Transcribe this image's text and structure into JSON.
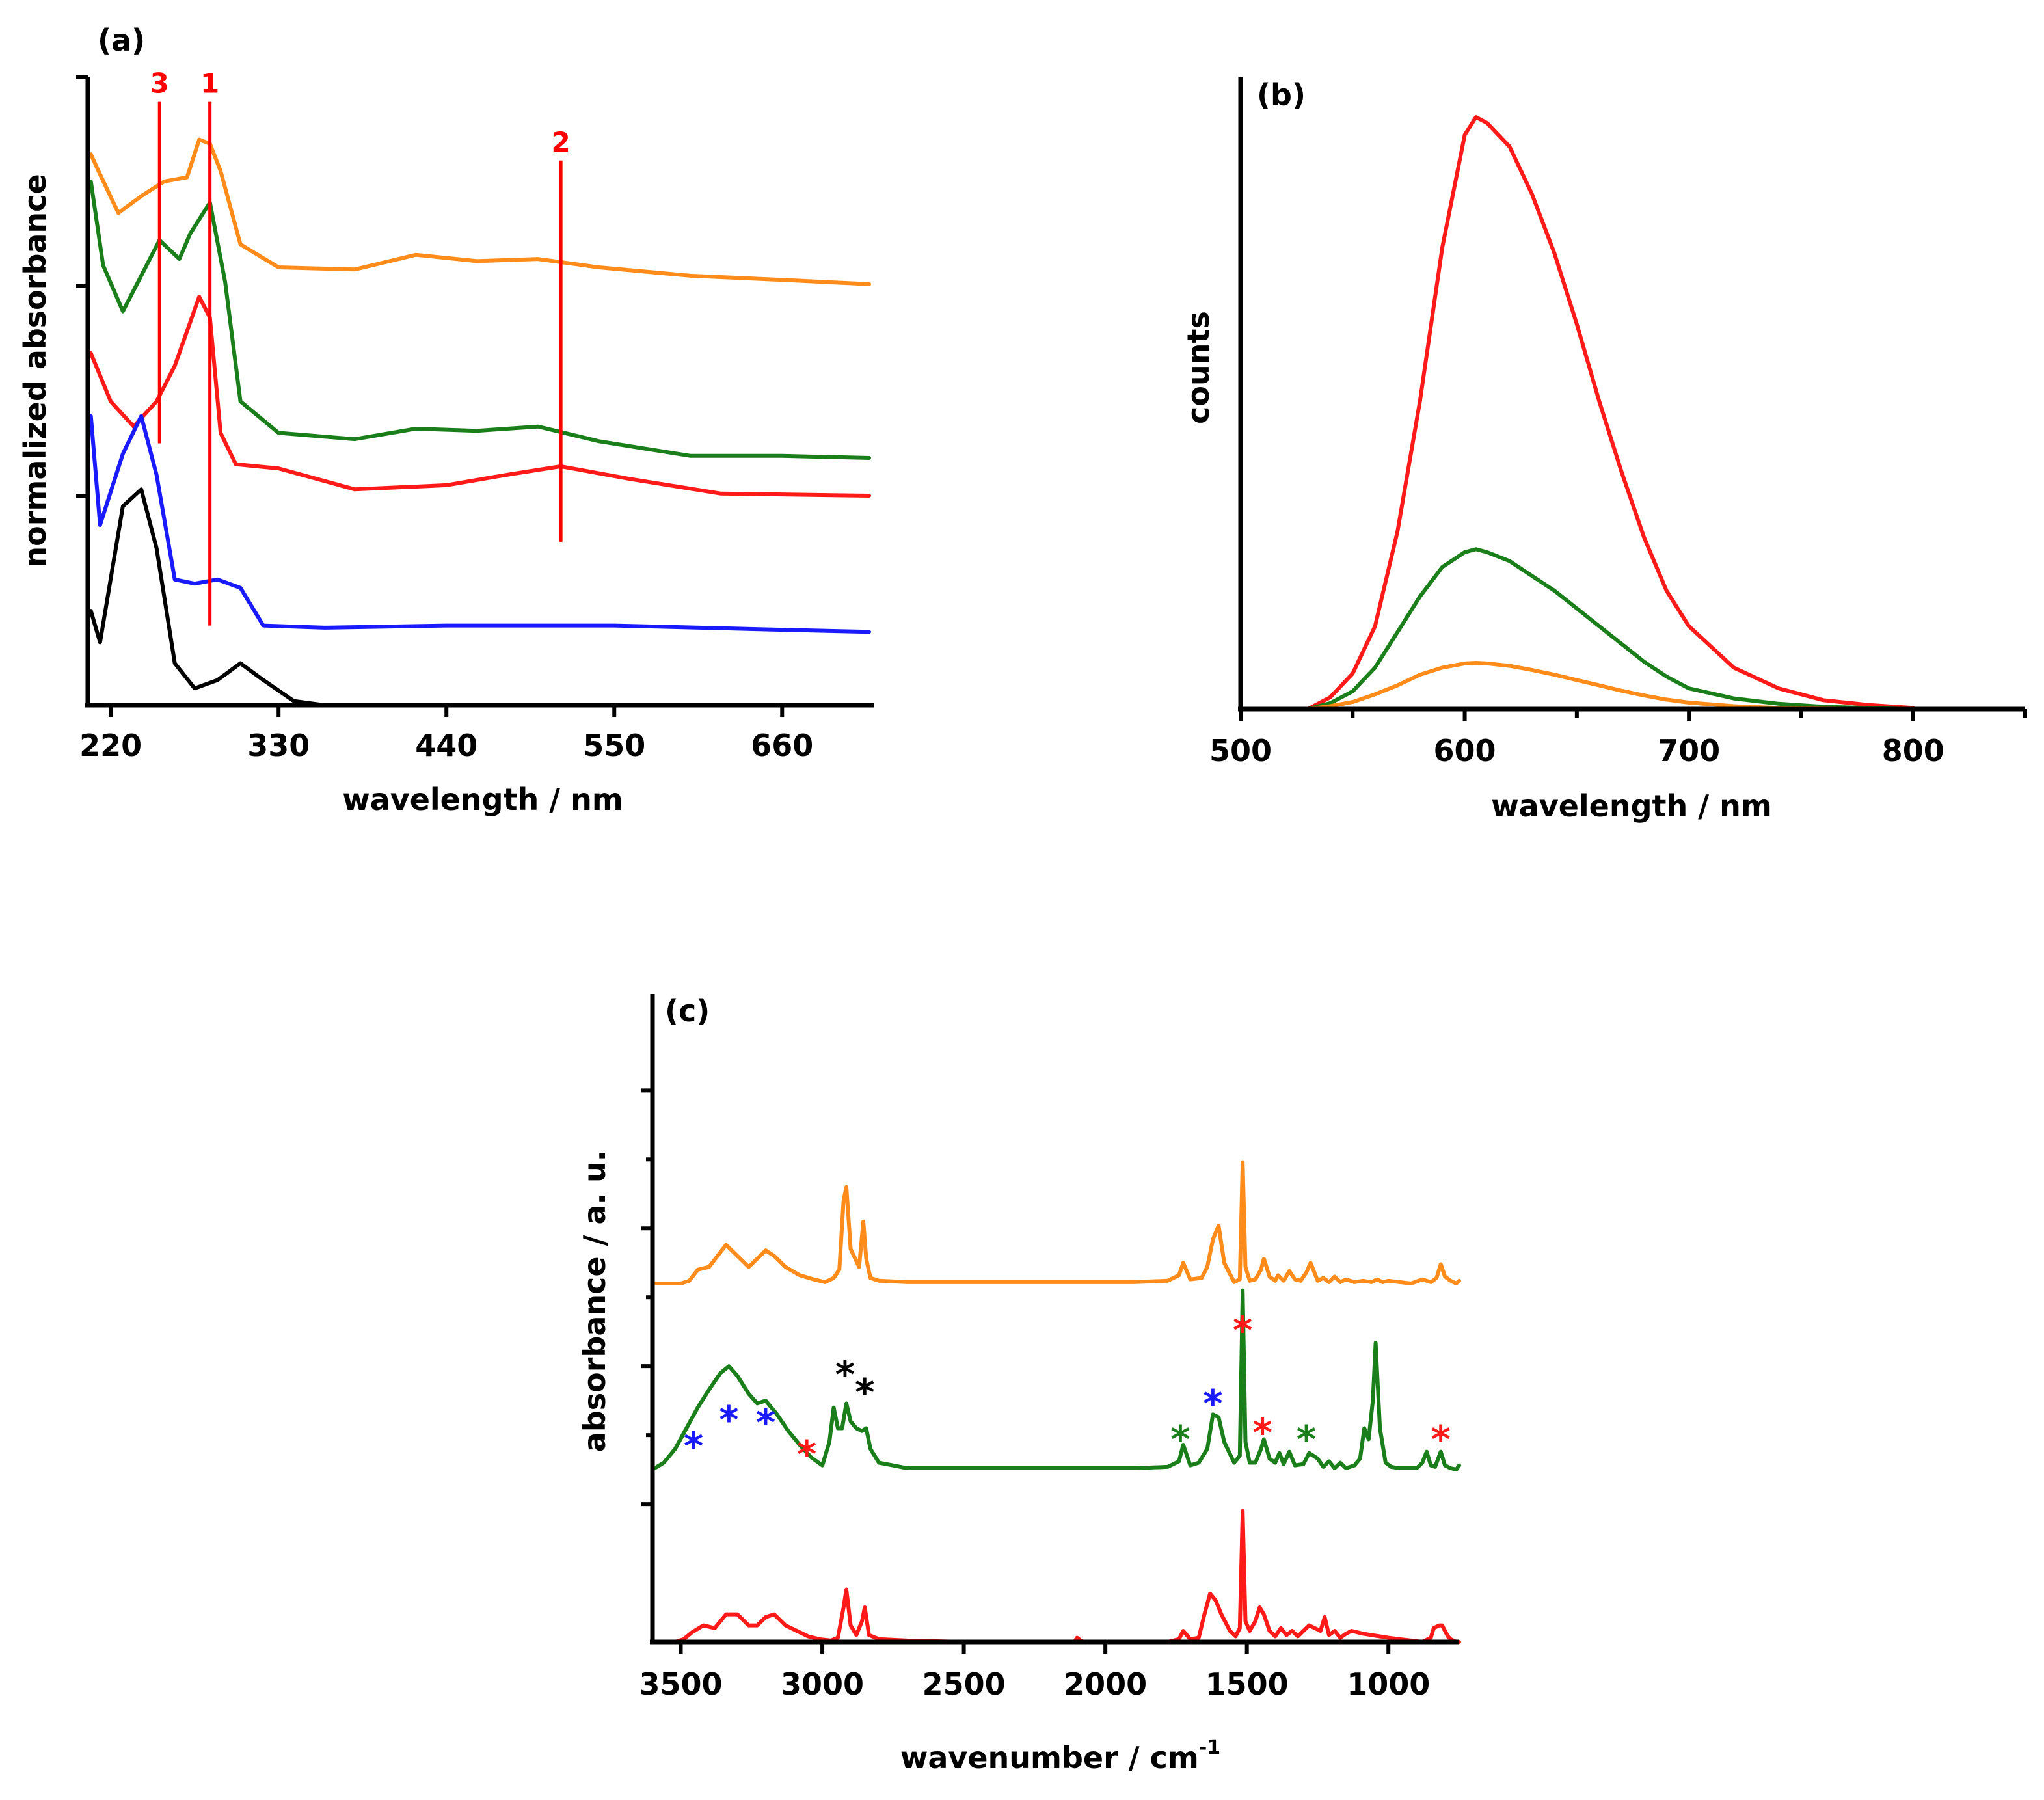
{
  "colors": {
    "orange": "#ff8c1a",
    "green": "#1a7f1a",
    "red": "#ff1a1a",
    "blue": "#1a1aff",
    "black": "#000000"
  },
  "chart_data": [
    {
      "type": "line",
      "panel": "(a)",
      "xlabel": "wavelength / nm",
      "ylabel": "normalized absorbance",
      "xlim": [
        205,
        720
      ],
      "ylim": [
        0,
        3
      ],
      "xticks": [
        "220",
        "330",
        "440",
        "550",
        "660"
      ],
      "markers": [
        {
          "label": "3",
          "x": 252,
          "y_top": 2.88,
          "y_bottom": 1.25
        },
        {
          "label": "1",
          "x": 285,
          "y_top": 2.88,
          "y_bottom": 0.38
        },
        {
          "label": "2",
          "x": 515,
          "y_top": 2.6,
          "y_bottom": 0.78
        }
      ],
      "series": [
        {
          "name": "orange",
          "color": "orange",
          "x": [
            207,
            212,
            225,
            240,
            255,
            270,
            278,
            285,
            292,
            305,
            330,
            380,
            420,
            460,
            500,
            540,
            600,
            660,
            717
          ],
          "y": [
            2.63,
            2.55,
            2.35,
            2.43,
            2.5,
            2.52,
            2.7,
            2.68,
            2.55,
            2.2,
            2.09,
            2.08,
            2.15,
            2.12,
            2.13,
            2.09,
            2.05,
            2.03,
            2.01
          ]
        },
        {
          "name": "green",
          "color": "green",
          "x": [
            207,
            215,
            228,
            240,
            252,
            265,
            272,
            285,
            295,
            305,
            330,
            380,
            420,
            460,
            500,
            540,
            600,
            660,
            717
          ],
          "y": [
            2.5,
            2.1,
            1.88,
            2.05,
            2.22,
            2.13,
            2.25,
            2.4,
            2.02,
            1.45,
            1.3,
            1.27,
            1.32,
            1.31,
            1.33,
            1.26,
            1.19,
            1.19,
            1.18
          ]
        },
        {
          "name": "red",
          "color": "red",
          "x": [
            207,
            220,
            235,
            250,
            262,
            278,
            285,
            292,
            302,
            330,
            380,
            440,
            480,
            515,
            560,
            620,
            717
          ],
          "y": [
            1.68,
            1.45,
            1.33,
            1.45,
            1.62,
            1.95,
            1.85,
            1.3,
            1.15,
            1.13,
            1.03,
            1.05,
            1.1,
            1.14,
            1.08,
            1.01,
            1.0
          ]
        },
        {
          "name": "blue",
          "color": "blue",
          "x": [
            207,
            213,
            228,
            240,
            250,
            262,
            275,
            290,
            305,
            320,
            360,
            440,
            550,
            660,
            717
          ],
          "y": [
            1.38,
            0.86,
            1.2,
            1.38,
            1.1,
            0.6,
            0.58,
            0.6,
            0.56,
            0.38,
            0.37,
            0.38,
            0.38,
            0.36,
            0.35
          ]
        },
        {
          "name": "black",
          "color": "black",
          "x": [
            207,
            213,
            228,
            240,
            250,
            262,
            275,
            290,
            305,
            320,
            340,
            360,
            420,
            560,
            717
          ],
          "y": [
            0.45,
            0.3,
            0.95,
            1.03,
            0.75,
            0.2,
            0.08,
            0.12,
            0.2,
            0.12,
            0.02,
            0.0,
            0.0,
            0.0,
            0.0
          ]
        }
      ]
    },
    {
      "type": "line",
      "panel": "(b)",
      "xlabel": "wavelength / nm",
      "ylabel": "counts",
      "xlim": [
        500,
        850
      ],
      "ylim": [
        0,
        1
      ],
      "xticks": [
        "500",
        "600",
        "700",
        "800"
      ],
      "series": [
        {
          "name": "red",
          "color": "red",
          "x": [
            530,
            540,
            550,
            560,
            570,
            580,
            590,
            600,
            605,
            610,
            620,
            630,
            640,
            650,
            660,
            670,
            680,
            690,
            700,
            720,
            740,
            760,
            780,
            800
          ],
          "y": [
            0.0,
            0.02,
            0.06,
            0.14,
            0.3,
            0.52,
            0.78,
            0.97,
            1.0,
            0.99,
            0.95,
            0.87,
            0.77,
            0.65,
            0.52,
            0.4,
            0.29,
            0.2,
            0.14,
            0.07,
            0.035,
            0.015,
            0.007,
            0.002
          ]
        },
        {
          "name": "green",
          "color": "green",
          "x": [
            530,
            540,
            550,
            560,
            570,
            580,
            590,
            600,
            605,
            610,
            620,
            630,
            640,
            650,
            660,
            670,
            680,
            690,
            700,
            720,
            740,
            760,
            780,
            800
          ],
          "y": [
            0.0,
            0.01,
            0.03,
            0.07,
            0.13,
            0.19,
            0.24,
            0.265,
            0.27,
            0.265,
            0.25,
            0.225,
            0.2,
            0.17,
            0.14,
            0.11,
            0.08,
            0.055,
            0.035,
            0.018,
            0.009,
            0.004,
            0.002,
            0.0
          ]
        },
        {
          "name": "orange",
          "color": "orange",
          "x": [
            530,
            540,
            550,
            560,
            570,
            580,
            590,
            600,
            605,
            610,
            620,
            630,
            640,
            650,
            660,
            670,
            680,
            690,
            700,
            720,
            740,
            760,
            780,
            800
          ],
          "y": [
            0.0,
            0.005,
            0.012,
            0.025,
            0.04,
            0.058,
            0.07,
            0.077,
            0.078,
            0.077,
            0.073,
            0.066,
            0.058,
            0.049,
            0.04,
            0.031,
            0.023,
            0.016,
            0.011,
            0.005,
            0.002,
            0.001,
            0.0,
            0.0
          ]
        }
      ]
    },
    {
      "type": "line",
      "panel": "(c)",
      "xlabel": "wavenumber / cm",
      "xlabel_superscript": "-1",
      "ylabel": "absorbance / a. u.",
      "xlim": [
        3600,
        750
      ],
      "ylim": [
        0,
        4.7
      ],
      "xticks": [
        "3500",
        "3000",
        "2500",
        "2000",
        "1500",
        "1000"
      ],
      "annotations": [
        {
          "text": "*",
          "color": "blue",
          "x": 3455,
          "y": 1.43
        },
        {
          "text": "*",
          "color": "blue",
          "x": 3330,
          "y": 1.62
        },
        {
          "text": "*",
          "color": "blue",
          "x": 3200,
          "y": 1.6
        },
        {
          "text": "*",
          "color": "red",
          "x": 3055,
          "y": 1.37
        },
        {
          "text": "*",
          "color": "black",
          "x": 2920,
          "y": 1.95
        },
        {
          "text": "*",
          "color": "black",
          "x": 2850,
          "y": 1.82
        },
        {
          "text": "*",
          "color": "blue",
          "x": 1620,
          "y": 1.74
        },
        {
          "text": "*",
          "color": "red",
          "x": 1515,
          "y": 2.27
        },
        {
          "text": "*",
          "color": "green",
          "x": 1735,
          "y": 1.48
        },
        {
          "text": "*",
          "color": "red",
          "x": 1445,
          "y": 1.53
        },
        {
          "text": "*",
          "color": "green",
          "x": 1290,
          "y": 1.48
        },
        {
          "text": "*",
          "color": "red",
          "x": 815,
          "y": 1.48
        }
      ],
      "series": [
        {
          "name": "orange",
          "color": "orange",
          "offset": 2.6,
          "x": [
            3600,
            3500,
            3470,
            3440,
            3400,
            3370,
            3340,
            3300,
            3260,
            3230,
            3200,
            3170,
            3130,
            3080,
            3030,
            2990,
            2960,
            2940,
            2925,
            2915,
            2900,
            2870,
            2855,
            2845,
            2830,
            2800,
            2700,
            2500,
            2200,
            1900,
            1780,
            1740,
            1725,
            1700,
            1660,
            1640,
            1620,
            1600,
            1580,
            1545,
            1525,
            1515,
            1505,
            1490,
            1470,
            1450,
            1440,
            1420,
            1400,
            1390,
            1370,
            1350,
            1330,
            1310,
            1290,
            1275,
            1250,
            1230,
            1210,
            1190,
            1170,
            1150,
            1120,
            1090,
            1060,
            1040,
            1020,
            1000,
            960,
            920,
            880,
            850,
            830,
            815,
            800,
            780,
            760,
            750
          ],
          "y": [
            0,
            0,
            0.02,
            0.1,
            0.12,
            0.2,
            0.28,
            0.2,
            0.12,
            0.18,
            0.24,
            0.2,
            0.12,
            0.06,
            0.03,
            0.01,
            0.04,
            0.1,
            0.6,
            0.7,
            0.25,
            0.12,
            0.45,
            0.18,
            0.04,
            0.02,
            0.01,
            0.01,
            0.01,
            0.01,
            0.02,
            0.06,
            0.15,
            0.03,
            0.04,
            0.12,
            0.32,
            0.42,
            0.15,
            0.01,
            0.03,
            0.88,
            0.12,
            0.02,
            0.03,
            0.1,
            0.18,
            0.05,
            0.02,
            0.06,
            0.02,
            0.09,
            0.03,
            0.02,
            0.08,
            0.15,
            0.02,
            0.04,
            0.01,
            0.05,
            0.01,
            0.03,
            0.01,
            0.02,
            0.01,
            0.03,
            0.01,
            0.02,
            0.01,
            0.0,
            0.03,
            0.01,
            0.04,
            0.14,
            0.05,
            0.02,
            0.0,
            0.02
          ]
        },
        {
          "name": "green",
          "color": "green",
          "offset": 1.25,
          "x": [
            3600,
            3560,
            3520,
            3480,
            3440,
            3400,
            3360,
            3330,
            3300,
            3260,
            3230,
            3200,
            3160,
            3120,
            3080,
            3040,
            3000,
            2975,
            2960,
            2945,
            2930,
            2915,
            2900,
            2880,
            2860,
            2845,
            2830,
            2800,
            2750,
            2700,
            2500,
            2200,
            1900,
            1780,
            1740,
            1725,
            1700,
            1670,
            1640,
            1620,
            1600,
            1580,
            1545,
            1525,
            1515,
            1505,
            1490,
            1470,
            1450,
            1440,
            1420,
            1400,
            1385,
            1370,
            1350,
            1330,
            1300,
            1280,
            1250,
            1230,
            1210,
            1190,
            1170,
            1150,
            1120,
            1100,
            1085,
            1070,
            1055,
            1045,
            1030,
            1010,
            990,
            960,
            930,
            900,
            880,
            865,
            850,
            835,
            815,
            800,
            780,
            760,
            750
          ],
          "y": [
            0,
            0.05,
            0.15,
            0.3,
            0.45,
            0.58,
            0.7,
            0.75,
            0.68,
            0.55,
            0.48,
            0.5,
            0.4,
            0.28,
            0.18,
            0.09,
            0.03,
            0.2,
            0.45,
            0.3,
            0.3,
            0.48,
            0.35,
            0.3,
            0.28,
            0.3,
            0.15,
            0.05,
            0.03,
            0.01,
            0.01,
            0.01,
            0.01,
            0.02,
            0.06,
            0.18,
            0.03,
            0.05,
            0.15,
            0.4,
            0.38,
            0.2,
            0.05,
            0.1,
            1.3,
            0.2,
            0.05,
            0.05,
            0.15,
            0.22,
            0.08,
            0.05,
            0.12,
            0.04,
            0.13,
            0.03,
            0.04,
            0.12,
            0.08,
            0.02,
            0.06,
            0.01,
            0.05,
            0.01,
            0.03,
            0.08,
            0.3,
            0.22,
            0.5,
            0.92,
            0.3,
            0.05,
            0.02,
            0.01,
            0.01,
            0.01,
            0.05,
            0.13,
            0.03,
            0.02,
            0.13,
            0.03,
            0.01,
            0.0,
            0.03
          ]
        },
        {
          "name": "red",
          "color": "red",
          "offset": 0.0,
          "x": [
            3600,
            3520,
            3490,
            3460,
            3420,
            3380,
            3340,
            3300,
            3260,
            3230,
            3200,
            3170,
            3130,
            3090,
            3050,
            3010,
            2970,
            2945,
            2925,
            2915,
            2900,
            2880,
            2860,
            2850,
            2835,
            2800,
            2700,
            2500,
            2300,
            2110,
            2100,
            2080,
            2000,
            1900,
            1780,
            1740,
            1725,
            1700,
            1670,
            1650,
            1630,
            1610,
            1590,
            1560,
            1540,
            1525,
            1515,
            1505,
            1490,
            1470,
            1455,
            1440,
            1420,
            1400,
            1380,
            1360,
            1340,
            1320,
            1300,
            1280,
            1260,
            1240,
            1225,
            1210,
            1190,
            1170,
            1150,
            1130,
            1110,
            1090,
            1060,
            1030,
            1000,
            960,
            920,
            880,
            860,
            850,
            840,
            820,
            810,
            800,
            790,
            780,
            760,
            750
          ],
          "y": [
            0,
            0.0,
            0.02,
            0.07,
            0.12,
            0.1,
            0.2,
            0.2,
            0.12,
            0.12,
            0.18,
            0.2,
            0.12,
            0.08,
            0.04,
            0.02,
            0.01,
            0.03,
            0.25,
            0.38,
            0.12,
            0.05,
            0.15,
            0.25,
            0.05,
            0.02,
            0.01,
            0.0,
            0.0,
            0.0,
            0.03,
            0.0,
            0.0,
            0.0,
            0.0,
            0.02,
            0.08,
            0.02,
            0.03,
            0.2,
            0.35,
            0.3,
            0.2,
            0.08,
            0.04,
            0.1,
            0.95,
            0.15,
            0.08,
            0.15,
            0.25,
            0.2,
            0.08,
            0.04,
            0.1,
            0.05,
            0.08,
            0.04,
            0.08,
            0.12,
            0.1,
            0.08,
            0.18,
            0.05,
            0.08,
            0.03,
            0.06,
            0.08,
            0.07,
            0.06,
            0.05,
            0.04,
            0.03,
            0.02,
            0.01,
            0.0,
            0.02,
            0.03,
            0.1,
            0.12,
            0.12,
            0.08,
            0.04,
            0.02,
            0.0,
            0.0
          ]
        }
      ]
    }
  ]
}
